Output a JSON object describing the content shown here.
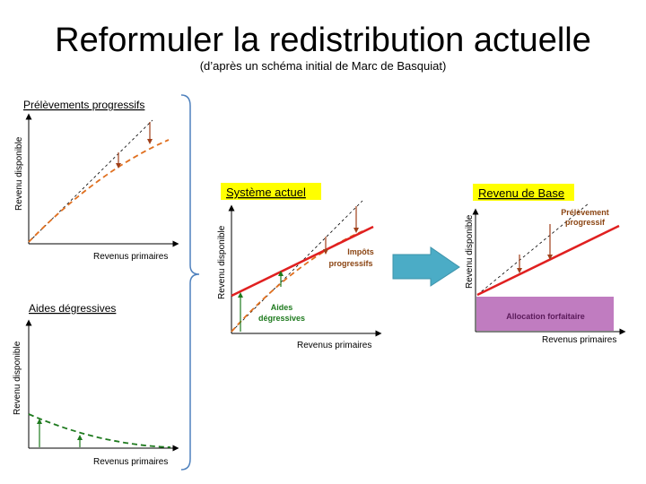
{
  "title": "Reformuler la redistribution actuelle",
  "subtitle": "(d’après un schéma initial de Marc de Basquiat)",
  "axes": {
    "x_label": "Revenus primaires",
    "y_label": "Revenu disponible"
  },
  "panels": {
    "prelevements": {
      "heading": "Prélèvements progressifs"
    },
    "aides": {
      "heading": "Aides dégressives"
    },
    "actuel": {
      "heading": "Système actuel",
      "impots_line1": "Impôts",
      "impots_line2": "progressifs",
      "aides_line1": "Aides",
      "aides_line2": "dégressives"
    },
    "base": {
      "heading": "Revenu de Base",
      "prelevement_line1": "Prélèvement",
      "prelevement_line2": "progressif",
      "allocation": "Allocation forfaitaire"
    }
  },
  "colors": {
    "orange": "#E07020",
    "green": "#1E7A1E",
    "red": "#E02020",
    "arrow_brown": "#A0401A",
    "highlight": "#FFFF00",
    "alloc_box": "#C07CC0",
    "big_arrow": "#4BACC6",
    "brace": "#4F81BD"
  }
}
